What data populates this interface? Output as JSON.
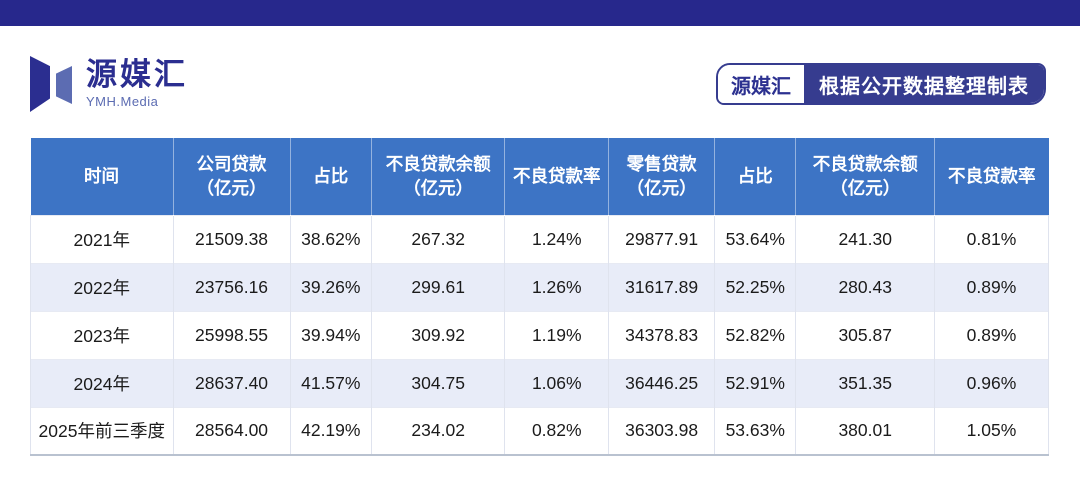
{
  "page": {
    "background": "#ffffff",
    "topbar_color": "#27288c"
  },
  "brand": {
    "name": "源媒汇",
    "subtitle": "YMH.Media",
    "mark_dark_color": "#2b2e90",
    "mark_light_color": "#5c6cb2"
  },
  "credit_badge": {
    "label": "源媒汇",
    "text": "根据公开数据整理制表",
    "badge_color": "#363c8f"
  },
  "chart_data": {
    "type": "table",
    "header_bg": "#3d74c5",
    "stripe_bg": "#e8ecf8",
    "columns": [
      "时间",
      "公司贷款\n（亿元）",
      "占比",
      "不良贷款余额\n（亿元）",
      "不良贷款率",
      "零售贷款\n（亿元）",
      "占比",
      "不良贷款余额\n（亿元）",
      "不良贷款率"
    ],
    "rows": [
      [
        "2021年",
        "21509.38",
        "38.62%",
        "267.32",
        "1.24%",
        "29877.91",
        "53.64%",
        "241.30",
        "0.81%"
      ],
      [
        "2022年",
        "23756.16",
        "39.26%",
        "299.61",
        "1.26%",
        "31617.89",
        "52.25%",
        "280.43",
        "0.89%"
      ],
      [
        "2023年",
        "25998.55",
        "39.94%",
        "309.92",
        "1.19%",
        "34378.83",
        "52.82%",
        "305.87",
        "0.89%"
      ],
      [
        "2024年",
        "28637.40",
        "41.57%",
        "304.75",
        "1.06%",
        "36446.25",
        "52.91%",
        "351.35",
        "0.96%"
      ],
      [
        "2025年前三季度",
        "28564.00",
        "42.19%",
        "234.02",
        "0.82%",
        "36303.98",
        "53.63%",
        "380.01",
        "1.05%"
      ]
    ]
  }
}
